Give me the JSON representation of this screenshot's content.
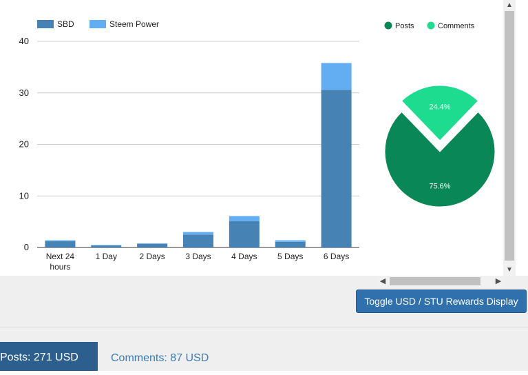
{
  "colors": {
    "sbd": "#4682b4",
    "steem_power": "#63aef2",
    "posts": "#0a8756",
    "comments": "#1ddc8f",
    "button_bg": "#3070ad",
    "tab_active_bg": "#2c5e8e",
    "tab_link": "#3a7ab8"
  },
  "chart_data": [
    {
      "type": "bar",
      "stacked": true,
      "categories": [
        "Next 24 hours",
        "1 Day",
        "2 Days",
        "3 Days",
        "4 Days",
        "5 Days",
        "6 Days"
      ],
      "series": [
        {
          "name": "SBD",
          "values": [
            1.2,
            0.4,
            0.7,
            2.5,
            5.1,
            1.1,
            30.6
          ]
        },
        {
          "name": "Steem Power",
          "values": [
            0.2,
            0.05,
            0.1,
            0.5,
            1.0,
            0.3,
            5.2
          ]
        }
      ],
      "ylim": [
        0,
        40
      ],
      "yticks": [
        0,
        10,
        20,
        30,
        40
      ],
      "grid": true,
      "legend": "top-left"
    },
    {
      "type": "pie",
      "slices": [
        {
          "name": "Posts",
          "value": 75.6,
          "label": "75.6%"
        },
        {
          "name": "Comments",
          "value": 24.4,
          "label": "24.4%",
          "exploded": true
        }
      ],
      "legend": "top"
    }
  ],
  "controls": {
    "toggle_button": "Toggle USD / STU Rewards Display",
    "vscroll_up": "▲",
    "vscroll_down": "▼",
    "hscroll_left": "◀",
    "hscroll_right": "▶"
  },
  "tabs": {
    "posts": "Posts: 271 USD",
    "comments": "Comments: 87 USD"
  }
}
